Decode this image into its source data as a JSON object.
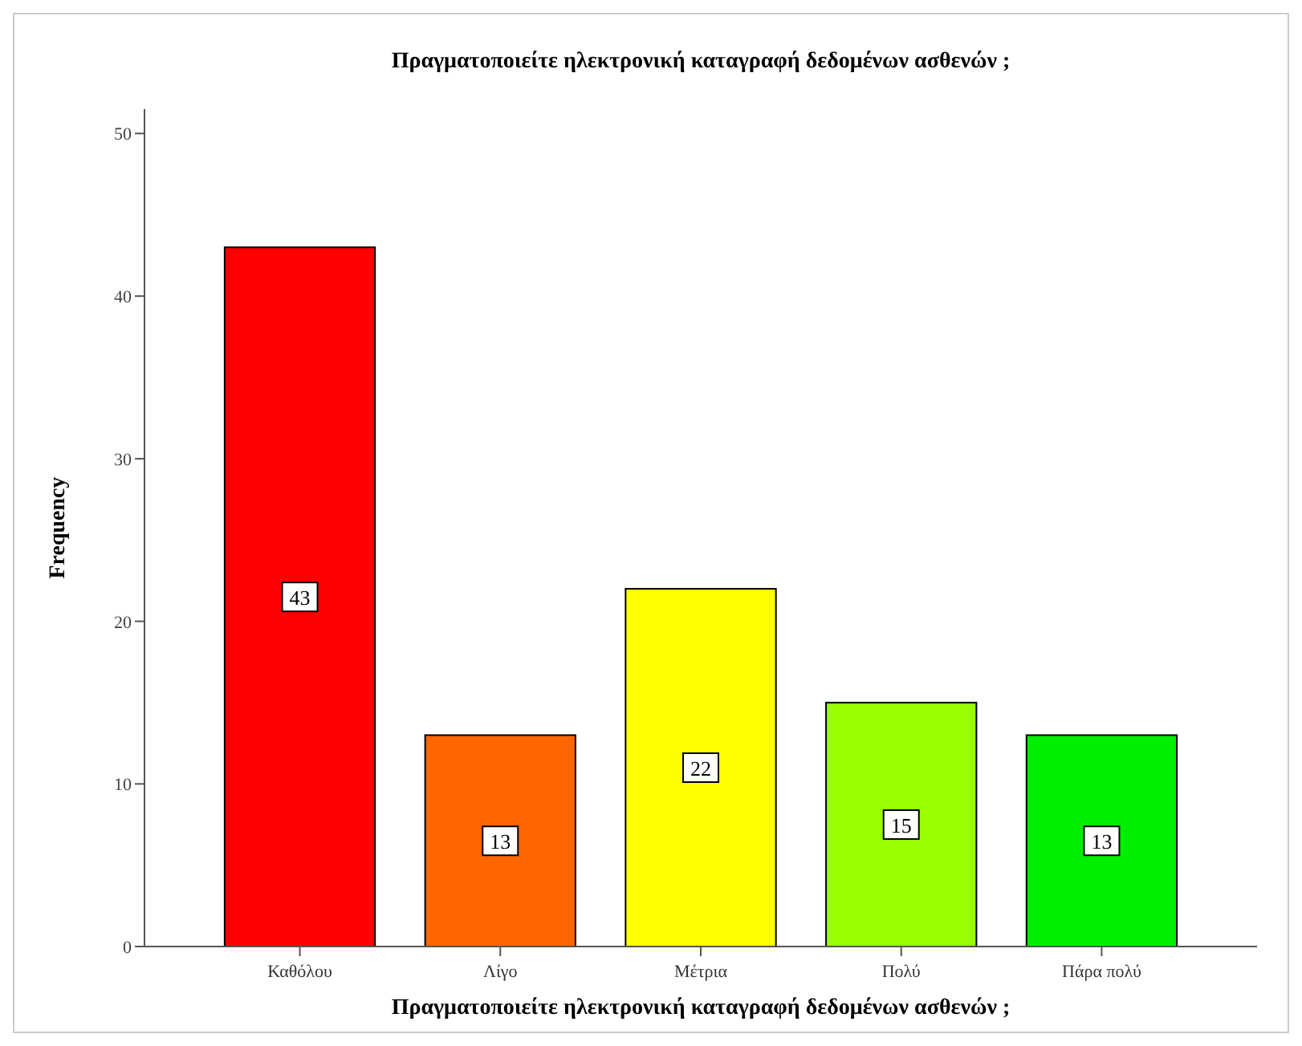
{
  "chart_data": {
    "type": "bar",
    "title": "Πραγματοποιείτε ηλεκτρονική καταγραφή δεδομένων ασθενών ;",
    "xlabel": "Πραγματοποιείτε ηλεκτρονική καταγραφή δεδομένων ασθενών ;",
    "ylabel": "Frequency",
    "categories": [
      "Καθόλου",
      "Λίγο",
      "Μέτρια",
      "Πολύ",
      "Πάρα πολύ"
    ],
    "values": [
      43,
      13,
      22,
      15,
      13
    ],
    "colors": [
      "#ff0000",
      "#ff6600",
      "#ffff00",
      "#99ff00",
      "#00ee00"
    ],
    "ylim": [
      0,
      51.5
    ],
    "yticks": [
      0,
      10,
      20,
      30,
      40,
      50
    ],
    "data_labels": true,
    "grid": false
  }
}
